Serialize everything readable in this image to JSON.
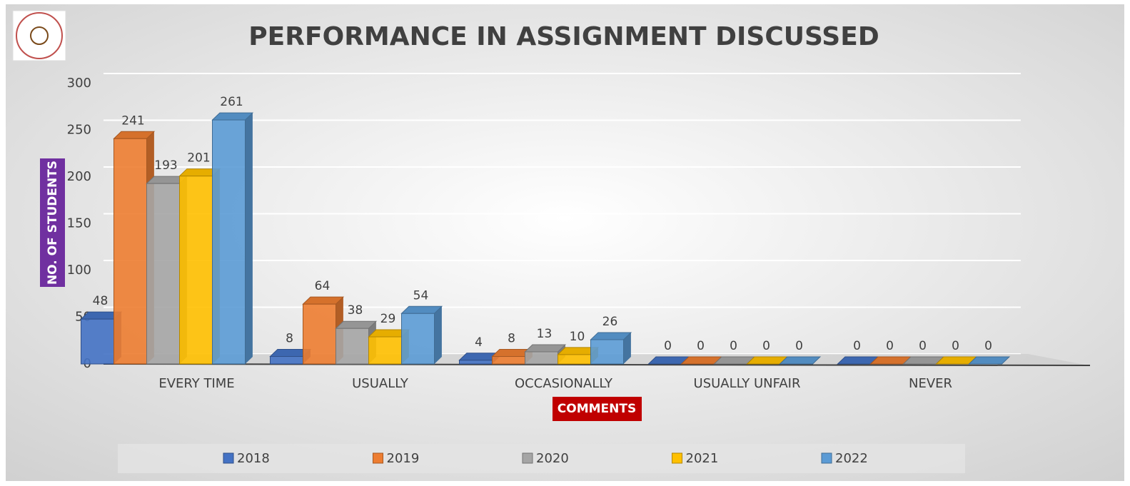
{
  "chart_data": {
    "type": "bar",
    "title": "PERFORMANCE IN ASSIGNMENT DISCUSSED",
    "x_label": "COMMENTS",
    "y_label": "NO. OF STUDENTS",
    "categories": [
      "EVERY TIME",
      "USUALLY",
      "OCCASIONALLY",
      "USUALLY UNFAIR",
      "NEVER"
    ],
    "series": [
      {
        "name": "2018",
        "color": "#4472c4",
        "values": [
          48,
          8,
          4,
          0,
          0
        ]
      },
      {
        "name": "2019",
        "color": "#ed7d31",
        "values": [
          241,
          64,
          8,
          0,
          0
        ]
      },
      {
        "name": "2020",
        "color": "#a5a5a5",
        "values": [
          193,
          38,
          13,
          0,
          0
        ]
      },
      {
        "name": "2021",
        "color": "#ffc000",
        "values": [
          201,
          29,
          10,
          0,
          0
        ]
      },
      {
        "name": "2022",
        "color": "#5b9bd5",
        "values": [
          261,
          54,
          26,
          0,
          0
        ]
      }
    ],
    "ylim": [
      0,
      300
    ],
    "yticks": [
      0,
      50,
      100,
      150,
      200,
      250,
      300
    ],
    "grid": true,
    "legend": "bottom"
  }
}
